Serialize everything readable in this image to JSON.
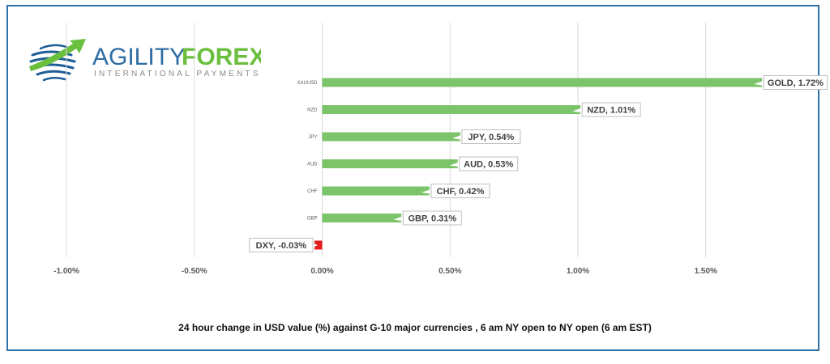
{
  "brand": {
    "name_part1": "AGILITY",
    "name_part2": "FOREX",
    "tagline": "INTERNATIONAL PAYMENTS",
    "color_blue": "#2e6da4",
    "color_green": "#6abf3f"
  },
  "caption": "24 hour change in  USD value (%)  against  G-10 major currencies , 6 am NY open to NY open  (6 am EST)",
  "colors": {
    "positive": "#7cc46a",
    "negative": "#e81b1b",
    "frame": "#2f6fa8"
  },
  "chart_data": {
    "type": "bar",
    "orientation": "horizontal",
    "categories": [
      "XAUUSD",
      "NZD",
      "JPY",
      "AUD",
      "CHF",
      "GBP",
      "DXY"
    ],
    "values": [
      1.72,
      1.01,
      0.54,
      0.53,
      0.42,
      0.31,
      -0.03
    ],
    "data_labels": [
      "GOLD, 1.72%",
      "NZD, 1.01%",
      "JPY, 0.54%",
      "AUD, 0.53%",
      "CHF, 0.42%",
      "GBP, 0.31%",
      "DXY, -0.03%"
    ],
    "xlim": [
      -1.0,
      2.0
    ],
    "xticks": [
      -1.0,
      -0.5,
      0.0,
      0.5,
      1.0,
      1.5
    ],
    "xtick_labels": [
      "-1.00%",
      "-0.50%",
      "0.00%",
      "0.50%",
      "1.00%",
      "1.50%"
    ],
    "grid": true,
    "legend": "none"
  }
}
